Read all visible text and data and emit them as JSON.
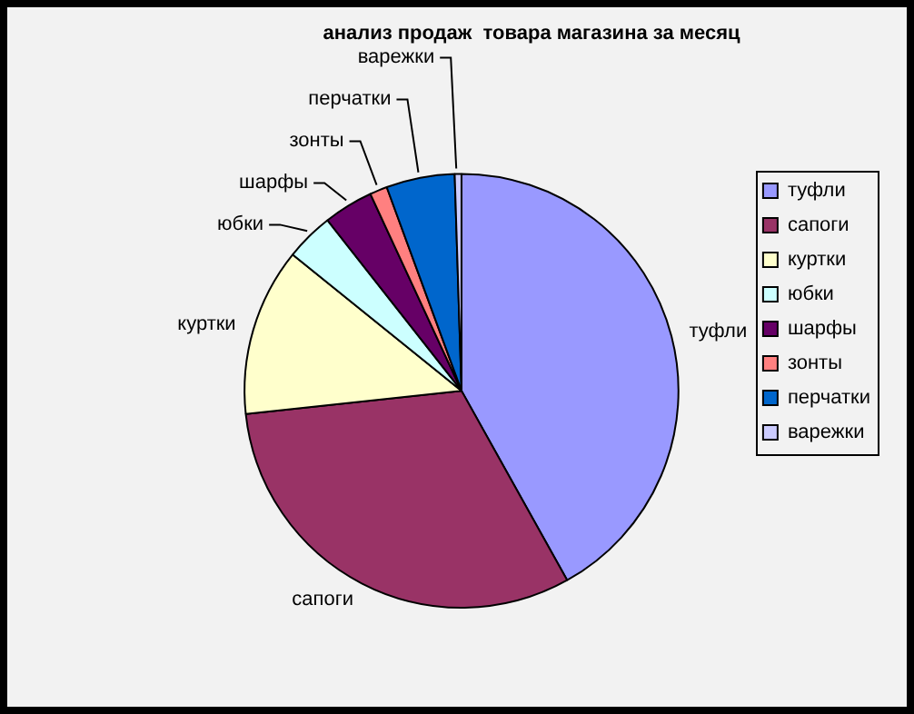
{
  "chart_data": {
    "type": "pie",
    "title": "анализ продаж  товара магазина за месяц",
    "categories": [
      "туфли",
      "сапоги",
      "куртки",
      "юбки",
      "шарфы",
      "зонты",
      "перчатки",
      "варежки"
    ],
    "values": [
      41.9,
      31.4,
      12.5,
      3.6,
      3.7,
      1.3,
      5.1,
      0.5
    ],
    "colors": [
      "#9999ff",
      "#993366",
      "#ffffcc",
      "#ccffff",
      "#660066",
      "#ff8080",
      "#0066cc",
      "#ccccff"
    ],
    "legend": "right"
  }
}
